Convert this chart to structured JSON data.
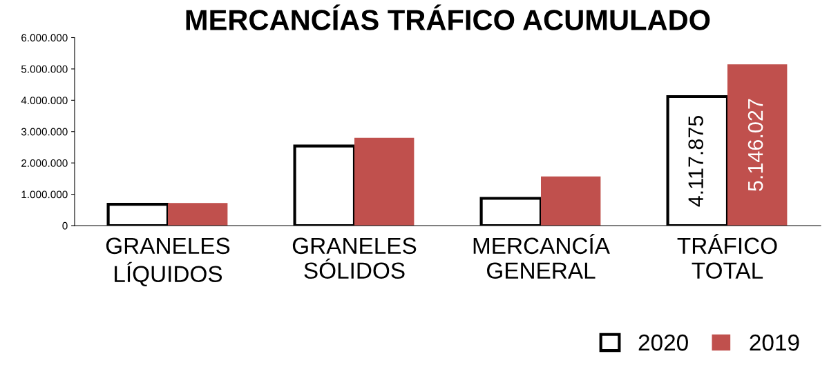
{
  "chart_data": {
    "type": "bar",
    "title": "MERCANCÍAS TRÁFICO ACUMULADO",
    "categories": [
      "GRANELES\nLÍQUIDOS",
      "GRANELES\nSÓLIDOS",
      "MERCANCÍA\nGENERAL",
      "TRÁFICO\nTOTAL"
    ],
    "series": [
      {
        "name": "2020",
        "color": "#ffffff",
        "values": [
          680000,
          2540000,
          870000,
          4117875
        ],
        "value_labels": [
          null,
          null,
          null,
          "4.117.875"
        ]
      },
      {
        "name": "2019",
        "color": "#c0504d",
        "values": [
          720000,
          2800000,
          1570000,
          5146027
        ],
        "value_labels": [
          null,
          null,
          null,
          "5.146.027"
        ]
      }
    ],
    "ylim": [
      0,
      6000000
    ],
    "yticks": [
      {
        "value": 0,
        "label": "0"
      },
      {
        "value": 1000000,
        "label": "1.000.000"
      },
      {
        "value": 2000000,
        "label": "2.000.000"
      },
      {
        "value": 3000000,
        "label": "3.000.000"
      },
      {
        "value": 4000000,
        "label": "4.000.000"
      },
      {
        "value": 5000000,
        "label": "5.000.000"
      },
      {
        "value": 6000000,
        "label": "6.000.000"
      }
    ],
    "grid": false,
    "legend": "bottom right"
  }
}
